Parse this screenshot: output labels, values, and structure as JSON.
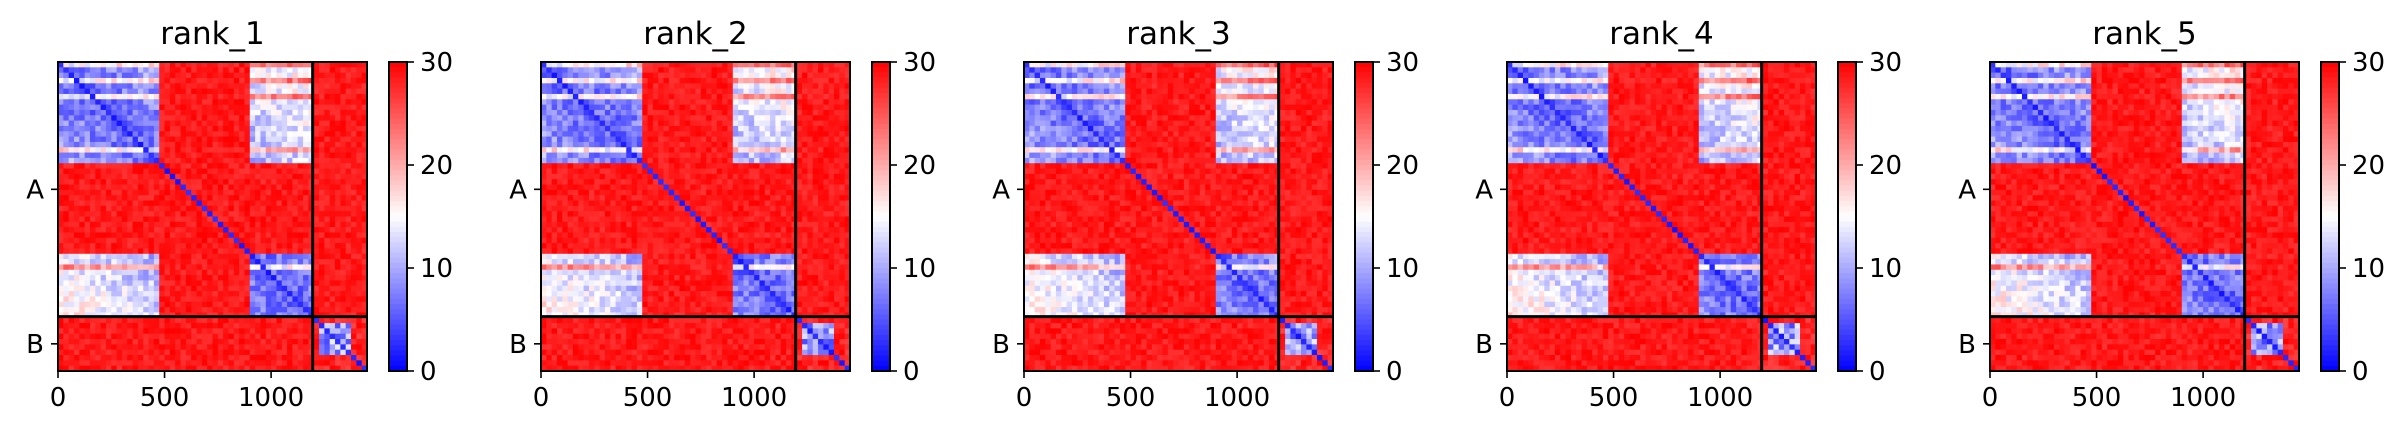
{
  "chart_data": {
    "type": "heatmap",
    "colormap": {
      "name": "bwr",
      "low": "#0000ff",
      "mid": "#ffffff",
      "high": "#ff0000"
    },
    "value_range": [
      0,
      30
    ],
    "colorbar_ticks": [
      "0",
      "10",
      "20",
      "30"
    ],
    "matrix_size": 1450,
    "x_ticks": [
      0,
      500,
      1000
    ],
    "x_tick_labels": [
      "0",
      "500",
      "1000"
    ],
    "chains": [
      {
        "label": "A",
        "start": 0,
        "end": 1195
      },
      {
        "label": "B",
        "start": 1195,
        "end": 1450
      }
    ],
    "panels": [
      {
        "title": "rank_1"
      },
      {
        "title": "rank_2"
      },
      {
        "title": "rank_3"
      },
      {
        "title": "rank_4"
      },
      {
        "title": "rank_5"
      }
    ]
  }
}
